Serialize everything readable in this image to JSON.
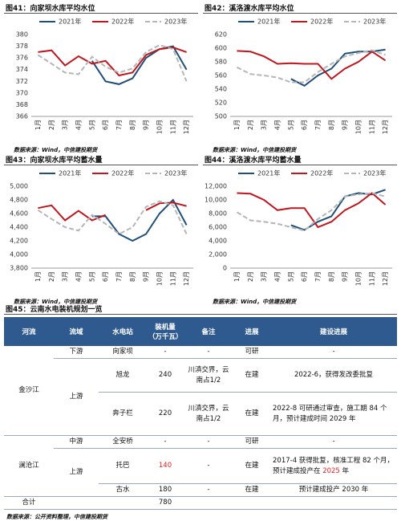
{
  "chart_data": [
    {
      "type": "line",
      "title": "图41：向家坝水库平均水位",
      "source": "数据来源：Wind，中信建投期货",
      "categories": [
        "1月",
        "2月",
        "3月",
        "4月",
        "5月",
        "6月",
        "7月",
        "8月",
        "9月",
        "10月",
        "11月",
        "12月"
      ],
      "ylim": [
        366,
        380
      ],
      "yticks": [
        366,
        368,
        370,
        372,
        374,
        376,
        378,
        380
      ],
      "grid": false,
      "series": [
        {
          "name": "2021年",
          "color": "#1f4e79",
          "dashed": false,
          "values": [
            null,
            null,
            null,
            null,
            375.5,
            372,
            371.5,
            372.5,
            376,
            377.5,
            378,
            374
          ]
        },
        {
          "name": "2022年",
          "color": "#c0161e",
          "dashed": false,
          "values": [
            377,
            377.3,
            374.7,
            376.3,
            375,
            375.5,
            373,
            373.5,
            376.5,
            377.5,
            377.8,
            377
          ]
        },
        {
          "name": "2023年",
          "color": "#b5b5b5",
          "dashed": true,
          "values": [
            376.5,
            375,
            373.5,
            373.2,
            376.2,
            374.5,
            373.5,
            374.2,
            377,
            378.2,
            377.5,
            372
          ]
        }
      ]
    },
    {
      "type": "line",
      "title": "图42：溪洛渡水库平均水位",
      "source": "数据来源：Wind，中信建投期货",
      "categories": [
        "1月",
        "2月",
        "3月",
        "4月",
        "5月",
        "6月",
        "7月",
        "8月",
        "9月",
        "10月",
        "11月",
        "12月"
      ],
      "ylim": [
        500,
        620
      ],
      "yticks": [
        500,
        520,
        540,
        560,
        580,
        600,
        620
      ],
      "grid": false,
      "series": [
        {
          "name": "2021年",
          "color": "#1f4e79",
          "dashed": false,
          "values": [
            null,
            null,
            null,
            null,
            555,
            545,
            560,
            570,
            592,
            595,
            595,
            598
          ]
        },
        {
          "name": "2022年",
          "color": "#c0161e",
          "dashed": false,
          "values": [
            596,
            595,
            588,
            577,
            578,
            577,
            577,
            555,
            570,
            580,
            595,
            582
          ]
        },
        {
          "name": "2023年",
          "color": "#b5b5b5",
          "dashed": true,
          "values": [
            572,
            562,
            560,
            557,
            550,
            550,
            565,
            577,
            588,
            593,
            597,
            590
          ]
        }
      ]
    },
    {
      "type": "line",
      "title": "图43：向家坝水库平均蓄水量",
      "source": "数据来源：Wind，中信建投期货",
      "categories": [
        "1月",
        "2月",
        "3月",
        "4月",
        "5月",
        "6月",
        "7月",
        "8月",
        "9月",
        "10月",
        "11月",
        "12月"
      ],
      "ylim": [
        3800,
        5000
      ],
      "yticks": [
        {
          "value": 3800,
          "label": "3,800"
        },
        {
          "value": 4000,
          "label": "4,000"
        },
        {
          "value": 4200,
          "label": "4,200"
        },
        {
          "value": 4400,
          "label": "4,400"
        },
        {
          "value": 4600,
          "label": "4,600"
        },
        {
          "value": 4800,
          "label": "4,800"
        },
        {
          "value": 5000,
          "label": "5,000"
        }
      ],
      "grid": false,
      "series": [
        {
          "name": "2021年",
          "color": "#1f4e79",
          "dashed": false,
          "values": [
            null,
            null,
            null,
            null,
            4560,
            4560,
            4300,
            4200,
            4300,
            4600,
            4800,
            4430
          ]
        },
        {
          "name": "2022年",
          "color": "#c0161e",
          "dashed": false,
          "values": [
            4680,
            4720,
            4500,
            4640,
            4500,
            4580,
            null,
            null,
            4650,
            4750,
            4760,
            4710
          ]
        },
        {
          "name": "2023年",
          "color": "#b5b5b5",
          "dashed": true,
          "values": [
            4650,
            4520,
            4400,
            4350,
            4580,
            4450,
            4300,
            4400,
            4700,
            4780,
            4720,
            4300
          ]
        }
      ]
    },
    {
      "type": "line",
      "title": "图44：溪洛渡水库平均蓄水量",
      "source": "数据来源：Wind，中信建投期货",
      "categories": [
        "1月",
        "2月",
        "3月",
        "4月",
        "5月",
        "6月",
        "7月",
        "8月",
        "9月",
        "10月",
        "11月",
        "12月"
      ],
      "ylim": [
        0,
        12000
      ],
      "yticks": [
        0,
        {
          "value": 2000,
          "label": "2,000"
        },
        {
          "value": 4000,
          "label": "4,000"
        },
        {
          "value": 6000,
          "label": "6,000"
        },
        {
          "value": 8000,
          "label": "8,000"
        },
        {
          "value": 10000,
          "label": "10,000"
        },
        {
          "value": 12000,
          "label": "12,000"
        }
      ],
      "grid": false,
      "series": [
        {
          "name": "2021年",
          "color": "#1f4e79",
          "dashed": false,
          "values": [
            null,
            null,
            null,
            null,
            6300,
            5600,
            6800,
            7600,
            10500,
            11000,
            10800,
            11500
          ]
        },
        {
          "name": "2022年",
          "color": "#c0161e",
          "dashed": false,
          "values": [
            11000,
            10900,
            10000,
            8500,
            8800,
            8800,
            6000,
            6800,
            8500,
            9500,
            11000,
            9300
          ]
        },
        {
          "name": "2023年",
          "color": "#b5b5b5",
          "dashed": true,
          "values": [
            8200,
            7000,
            6800,
            6500,
            6000,
            5500,
            7200,
            8500,
            10500,
            10800,
            11000,
            10500
          ]
        }
      ]
    }
  ],
  "table": {
    "title": "图45：云南水电装机规划一览",
    "emphasis_color": "#e02020",
    "header": [
      "河流",
      "流域",
      "水电站",
      "装机量（万千瓦）",
      "备注",
      "进展",
      "建设进展"
    ],
    "groups": [
      {
        "river": "金沙江",
        "basins": [
          {
            "name": "下游",
            "stations": [
              {
                "station": "向家坝",
                "capacity": {
                  "text": "-",
                  "emphasis": false
                },
                "note": "-",
                "status": "可研",
                "progress": [
                  {
                    "text": "-",
                    "emphasis": false
                  }
                ]
              }
            ]
          },
          {
            "name": "上游",
            "stations": [
              {
                "station": "旭龙",
                "capacity": {
                  "text": 240,
                  "emphasis": false
                },
                "note": "川滇交界，云南占1/2",
                "status": "在建",
                "progress": [
                  {
                    "text": "2022-6，获得发改委批复",
                    "emphasis": false
                  }
                ]
              },
              {
                "station": "奔子栏",
                "capacity": {
                  "text": 220,
                  "emphasis": false
                },
                "note": "川滇交界，云南占1/2",
                "status": "在建",
                "progress": [
                  {
                    "text": "2022-8 可研通过审查，施工期 84 个月，预计建成时间 2029 年",
                    "emphasis": false
                  }
                ]
              }
            ]
          }
        ]
      },
      {
        "river": "澜沧江",
        "basins": [
          {
            "name": "中游",
            "stations": [
              {
                "station": "全安桥",
                "capacity": {
                  "text": "-",
                  "emphasis": false
                },
                "note": "-",
                "status": "可研",
                "progress": [
                  {
                    "text": "-",
                    "emphasis": false
                  }
                ]
              }
            ]
          },
          {
            "name": "上游",
            "stations": [
              {
                "station": "托巴",
                "capacity": {
                  "text": 140,
                  "emphasis": true
                },
                "note": "-",
                "status": "在建",
                "progress": [
                  {
                    "text": "2017-4 获得批复，核准工程 82 个月，预计建成投产在 ",
                    "emphasis": false
                  },
                  {
                    "text": "2025",
                    "emphasis": true
                  },
                  {
                    "text": " 年",
                    "emphasis": false
                  }
                ]
              },
              {
                "station": "古水",
                "capacity": {
                  "text": 180,
                  "emphasis": false
                },
                "note": "-",
                "status": "在建",
                "progress": [
                  {
                    "text": "预计建成投产 2030 年",
                    "emphasis": false
                  }
                ]
              }
            ]
          }
        ]
      }
    ],
    "total": {
      "label": "合计",
      "capacity": 780
    },
    "source": "数据来源：公开资料整理，中信建投期货"
  }
}
